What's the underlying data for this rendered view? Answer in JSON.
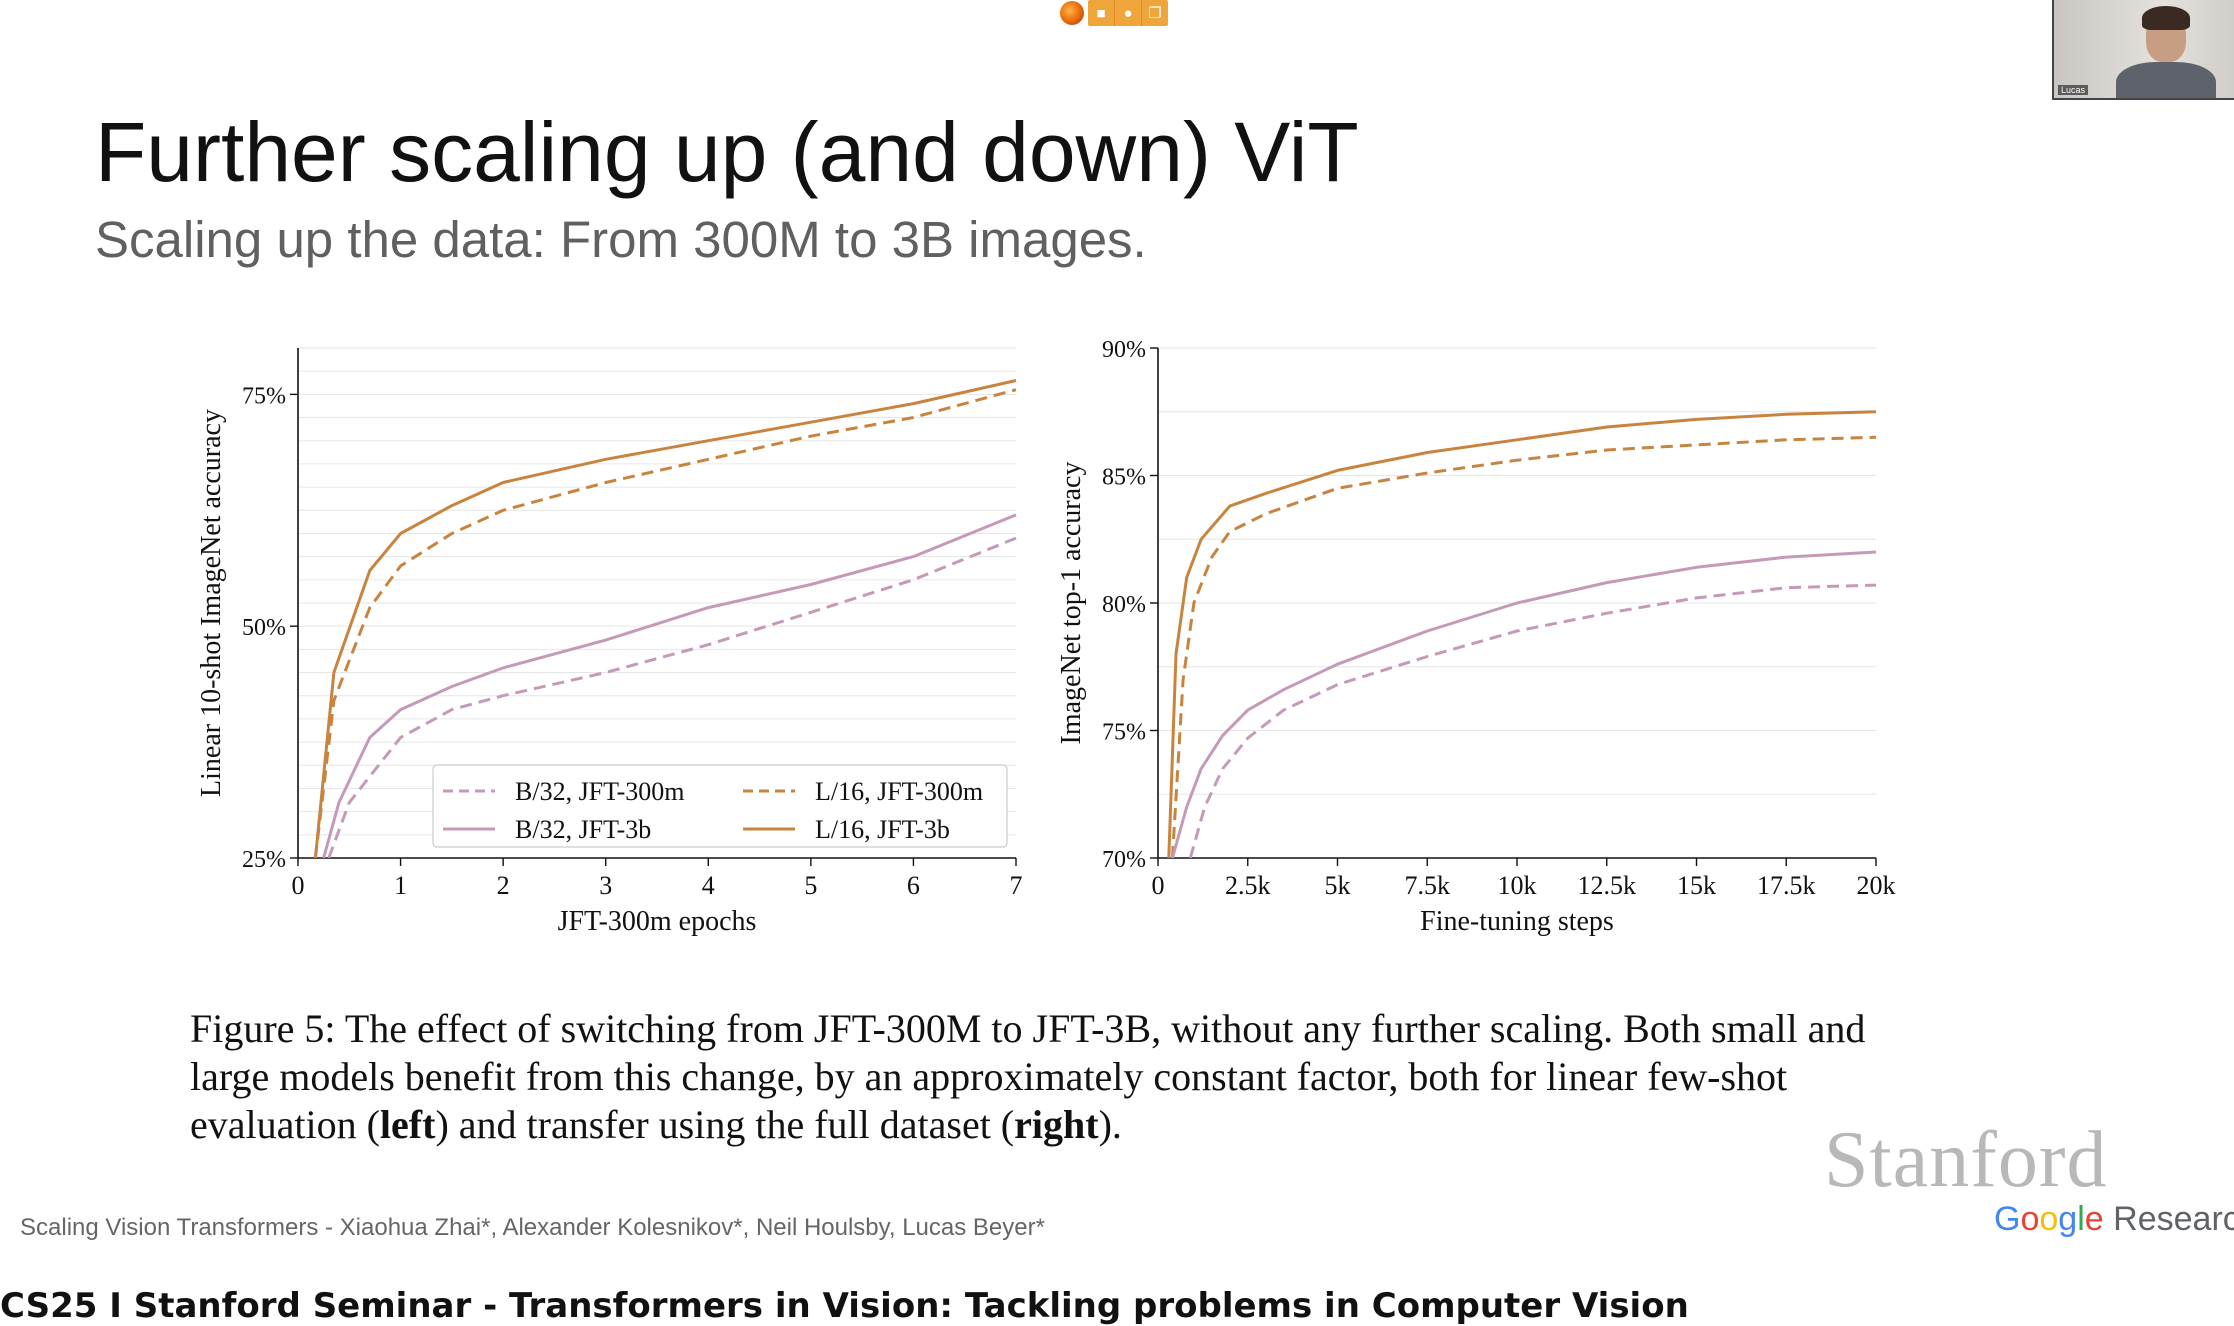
{
  "window": {
    "share_icons": [
      "camera-icon",
      "mic-icon",
      "screen-share-icon"
    ],
    "participant_name": "Lucas"
  },
  "slide": {
    "title": "Further scaling up (and down) ViT",
    "subtitle": "Scaling up the data: From 300M to 3B images.",
    "caption": {
      "p1": "Figure 5: The effect of switching from JFT-300M to JFT-3B, without any further scaling. Both small and large models benefit from this change, by an approximately constant factor, both for linear few-shot evaluation (",
      "bold1": "left",
      "p2": ") and transfer using the full dataset (",
      "bold2": "right",
      "p3": ")."
    },
    "credit": "Scaling Vision Transformers - Xiaohua Zhai*, Alexander Kolesnikov*, Neil Houlsby, Lucas Beyer*",
    "logo_stanford": "Stanford",
    "logo_google": [
      "G",
      "o",
      "o",
      "g",
      "l",
      "e"
    ],
    "logo_research": "Research",
    "banner": "CS25 I Stanford Seminar - Transformers in Vision: Tackling problems in Computer Vision"
  },
  "colors": {
    "orange": "#C8843F",
    "pink": "#C49AB8",
    "grid": "#e6e6e6"
  },
  "chart_data": [
    {
      "type": "line",
      "xlabel": "JFT-300m epochs",
      "ylabel": "Linear 10-shot ImageNet accuracy",
      "xlim": [
        0,
        7
      ],
      "ylim": [
        25,
        80
      ],
      "xticks": [
        0,
        1,
        2,
        3,
        4,
        5,
        6,
        7
      ],
      "xtick_labels": [
        "0",
        "1",
        "2",
        "3",
        "4",
        "5",
        "6",
        "7"
      ],
      "yticks": [
        25,
        50,
        75
      ],
      "ytick_labels": [
        "25%",
        "50%",
        "75%"
      ],
      "grid": true,
      "legend": "bottom-right",
      "series": [
        {
          "name": "B/32, JFT-300m",
          "color": "pink",
          "dash": true,
          "x": [
            0.3,
            0.5,
            1.0,
            1.5,
            2.0,
            3.0,
            4.0,
            5.0,
            6.0,
            7.0
          ],
          "y": [
            25,
            31,
            38,
            41,
            42.5,
            45,
            48,
            51.5,
            55,
            59.5
          ]
        },
        {
          "name": "B/32, JFT-3b",
          "color": "pink",
          "dash": false,
          "x": [
            0.25,
            0.4,
            0.7,
            1.0,
            1.5,
            2.0,
            3.0,
            4.0,
            5.0,
            6.0,
            7.0
          ],
          "y": [
            25,
            31,
            38,
            41,
            43.5,
            45.5,
            48.5,
            52,
            54.5,
            57.5,
            62
          ]
        },
        {
          "name": "L/16, JFT-300m",
          "color": "orange",
          "dash": true,
          "x": [
            0.17,
            0.35,
            0.7,
            1.0,
            1.5,
            2.0,
            3.0,
            4.0,
            5.0,
            6.0,
            7.0
          ],
          "y": [
            25,
            42,
            52,
            56.5,
            60,
            62.5,
            65.5,
            68,
            70.5,
            72.5,
            75.5
          ]
        },
        {
          "name": "L/16, JFT-3b",
          "color": "orange",
          "dash": false,
          "x": [
            0.17,
            0.35,
            0.7,
            1.0,
            1.5,
            2.0,
            3.0,
            4.0,
            5.0,
            6.0,
            7.0
          ],
          "y": [
            25,
            45,
            56,
            60,
            63,
            65.5,
            68,
            70,
            72,
            74,
            76.5
          ]
        }
      ]
    },
    {
      "type": "line",
      "xlabel": "Fine-tuning steps",
      "ylabel": "ImageNet top-1 accuracy",
      "xlim": [
        0,
        20000
      ],
      "ylim": [
        70,
        90
      ],
      "xticks": [
        0,
        2500,
        5000,
        7500,
        10000,
        12500,
        15000,
        17500,
        20000
      ],
      "xtick_labels": [
        "0",
        "2.5k",
        "5k",
        "7.5k",
        "10k",
        "12.5k",
        "15k",
        "17.5k",
        "20k"
      ],
      "yticks": [
        70,
        75,
        80,
        85,
        90
      ],
      "ytick_labels": [
        "70%",
        "75%",
        "80%",
        "85%",
        "90%"
      ],
      "grid": true,
      "series": [
        {
          "color": "orange",
          "dash": false,
          "x": [
            300,
            500,
            800,
            1200,
            2000,
            3000,
            5000,
            7500,
            10000,
            12500,
            15000,
            17500,
            20000
          ],
          "y": [
            70,
            78,
            81,
            82.5,
            83.8,
            84.3,
            85.2,
            85.9,
            86.4,
            86.9,
            87.2,
            87.4,
            87.5
          ]
        },
        {
          "color": "orange",
          "dash": true,
          "x": [
            400,
            700,
            1000,
            1500,
            2000,
            3000,
            5000,
            7500,
            10000,
            12500,
            15000,
            17500,
            20000
          ],
          "y": [
            70,
            77,
            80,
            81.8,
            82.8,
            83.5,
            84.5,
            85.1,
            85.6,
            86.0,
            86.2,
            86.4,
            86.5
          ]
        },
        {
          "color": "pink",
          "dash": false,
          "x": [
            400,
            800,
            1200,
            1800,
            2500,
            3500,
            5000,
            7500,
            10000,
            12500,
            15000,
            17500,
            20000
          ],
          "y": [
            70,
            72,
            73.5,
            74.8,
            75.8,
            76.6,
            77.6,
            78.9,
            80.0,
            80.8,
            81.4,
            81.8,
            82.0
          ]
        },
        {
          "color": "pink",
          "dash": true,
          "x": [
            900,
            1300,
            1800,
            2500,
            3500,
            5000,
            7500,
            10000,
            12500,
            15000,
            17500,
            20000
          ],
          "y": [
            70,
            72,
            73.5,
            74.7,
            75.8,
            76.8,
            77.9,
            78.9,
            79.6,
            80.2,
            80.6,
            80.7
          ]
        }
      ]
    }
  ]
}
